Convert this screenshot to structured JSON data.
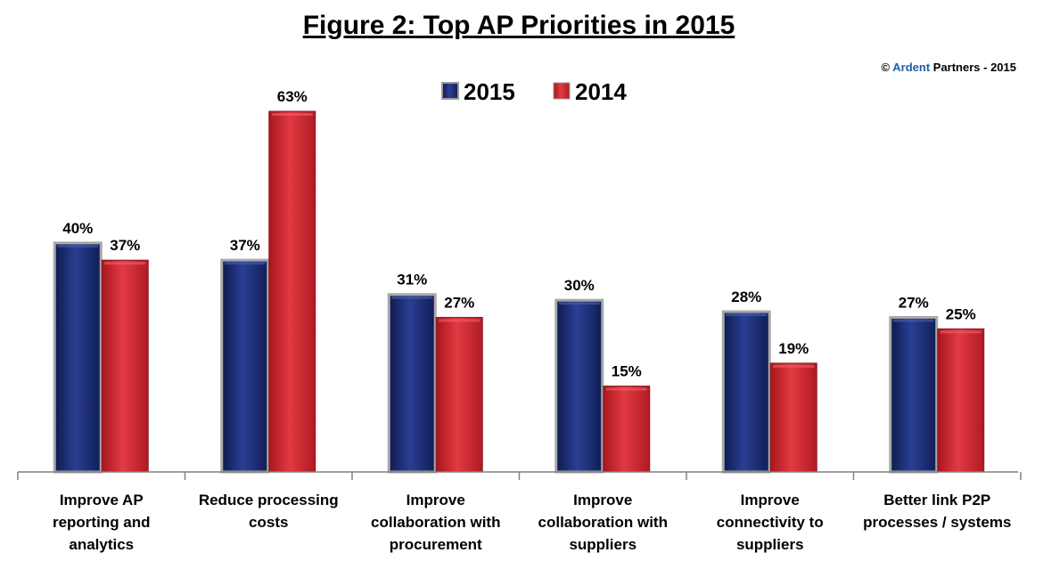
{
  "chart_data": {
    "type": "bar",
    "title": "Figure 2: Top AP Priorities in 2015",
    "copyright": {
      "prefix": "© ",
      "brand": "Ardent",
      "suffix": " Partners - 2015"
    },
    "legend_position": "top-center",
    "categories": [
      "Improve AP reporting and analytics",
      "Reduce processing costs",
      "Improve collaboration with procurement",
      "Improve collaboration with suppliers",
      "Improve connectivity to suppliers",
      "Better link P2P processes / systems"
    ],
    "category_lines": [
      [
        "Improve AP",
        "reporting and",
        "analytics"
      ],
      [
        "Reduce processing",
        "costs"
      ],
      [
        "Improve",
        "collaboration with",
        "procurement"
      ],
      [
        "Improve",
        "collaboration with",
        "suppliers"
      ],
      [
        "Improve",
        "connectivity to",
        "suppliers"
      ],
      [
        "Better link P2P",
        "processes / systems"
      ]
    ],
    "series": [
      {
        "name": "2015",
        "values": [
          40,
          37,
          31,
          30,
          28,
          27
        ],
        "labels": [
          "40%",
          "37%",
          "31%",
          "30%",
          "28%",
          "27%"
        ],
        "color": "#1c2f7a"
      },
      {
        "name": "2014",
        "values": [
          37,
          63,
          27,
          15,
          19,
          25
        ],
        "labels": [
          "37%",
          "63%",
          "27%",
          "15%",
          "19%",
          "25%"
        ],
        "color": "#d52b33"
      }
    ],
    "ylim": [
      0,
      63
    ],
    "grid": false,
    "colors": {
      "brand": "#1f5fa8",
      "series2015": "#1c2f7a",
      "series2014": "#d52b33"
    }
  }
}
